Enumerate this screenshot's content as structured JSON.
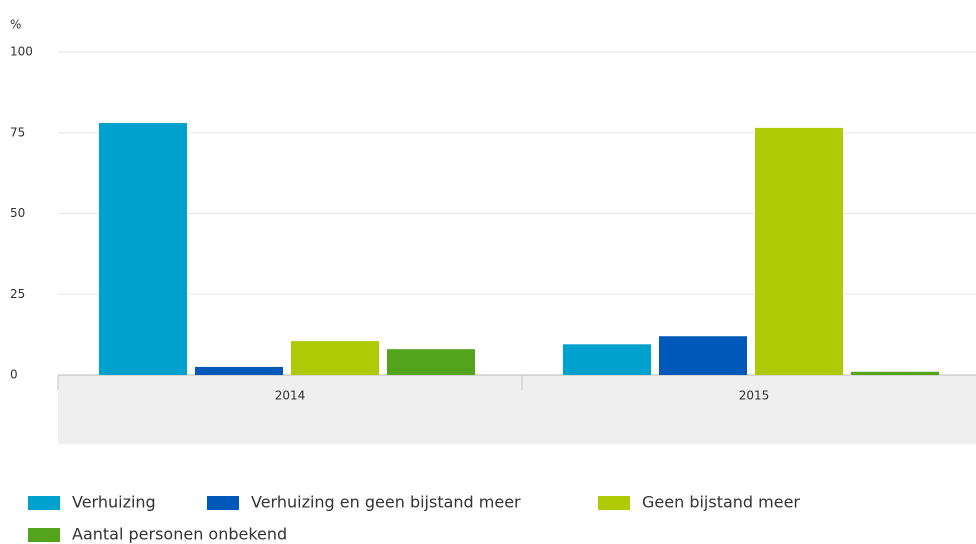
{
  "chart_data": {
    "type": "bar",
    "y_label": "%",
    "categories": [
      "2014",
      "2015"
    ],
    "series": [
      {
        "name": "Verhuizing",
        "color": "#00a1cd",
        "values": [
          78,
          9.5
        ]
      },
      {
        "name": "Verhuizing en geen bijstand meer",
        "color": "#0058b8",
        "values": [
          2.5,
          12
        ]
      },
      {
        "name": "Geen bijstand meer",
        "color": "#afcb05",
        "values": [
          10.5,
          76.5
        ]
      },
      {
        "name": "Aantal personen onbekend",
        "color": "#53a31d",
        "values": [
          8,
          1
        ]
      }
    ],
    "ylim": [
      0,
      100
    ],
    "yticks": [
      0,
      25,
      50,
      75,
      100
    ],
    "grid": true
  }
}
